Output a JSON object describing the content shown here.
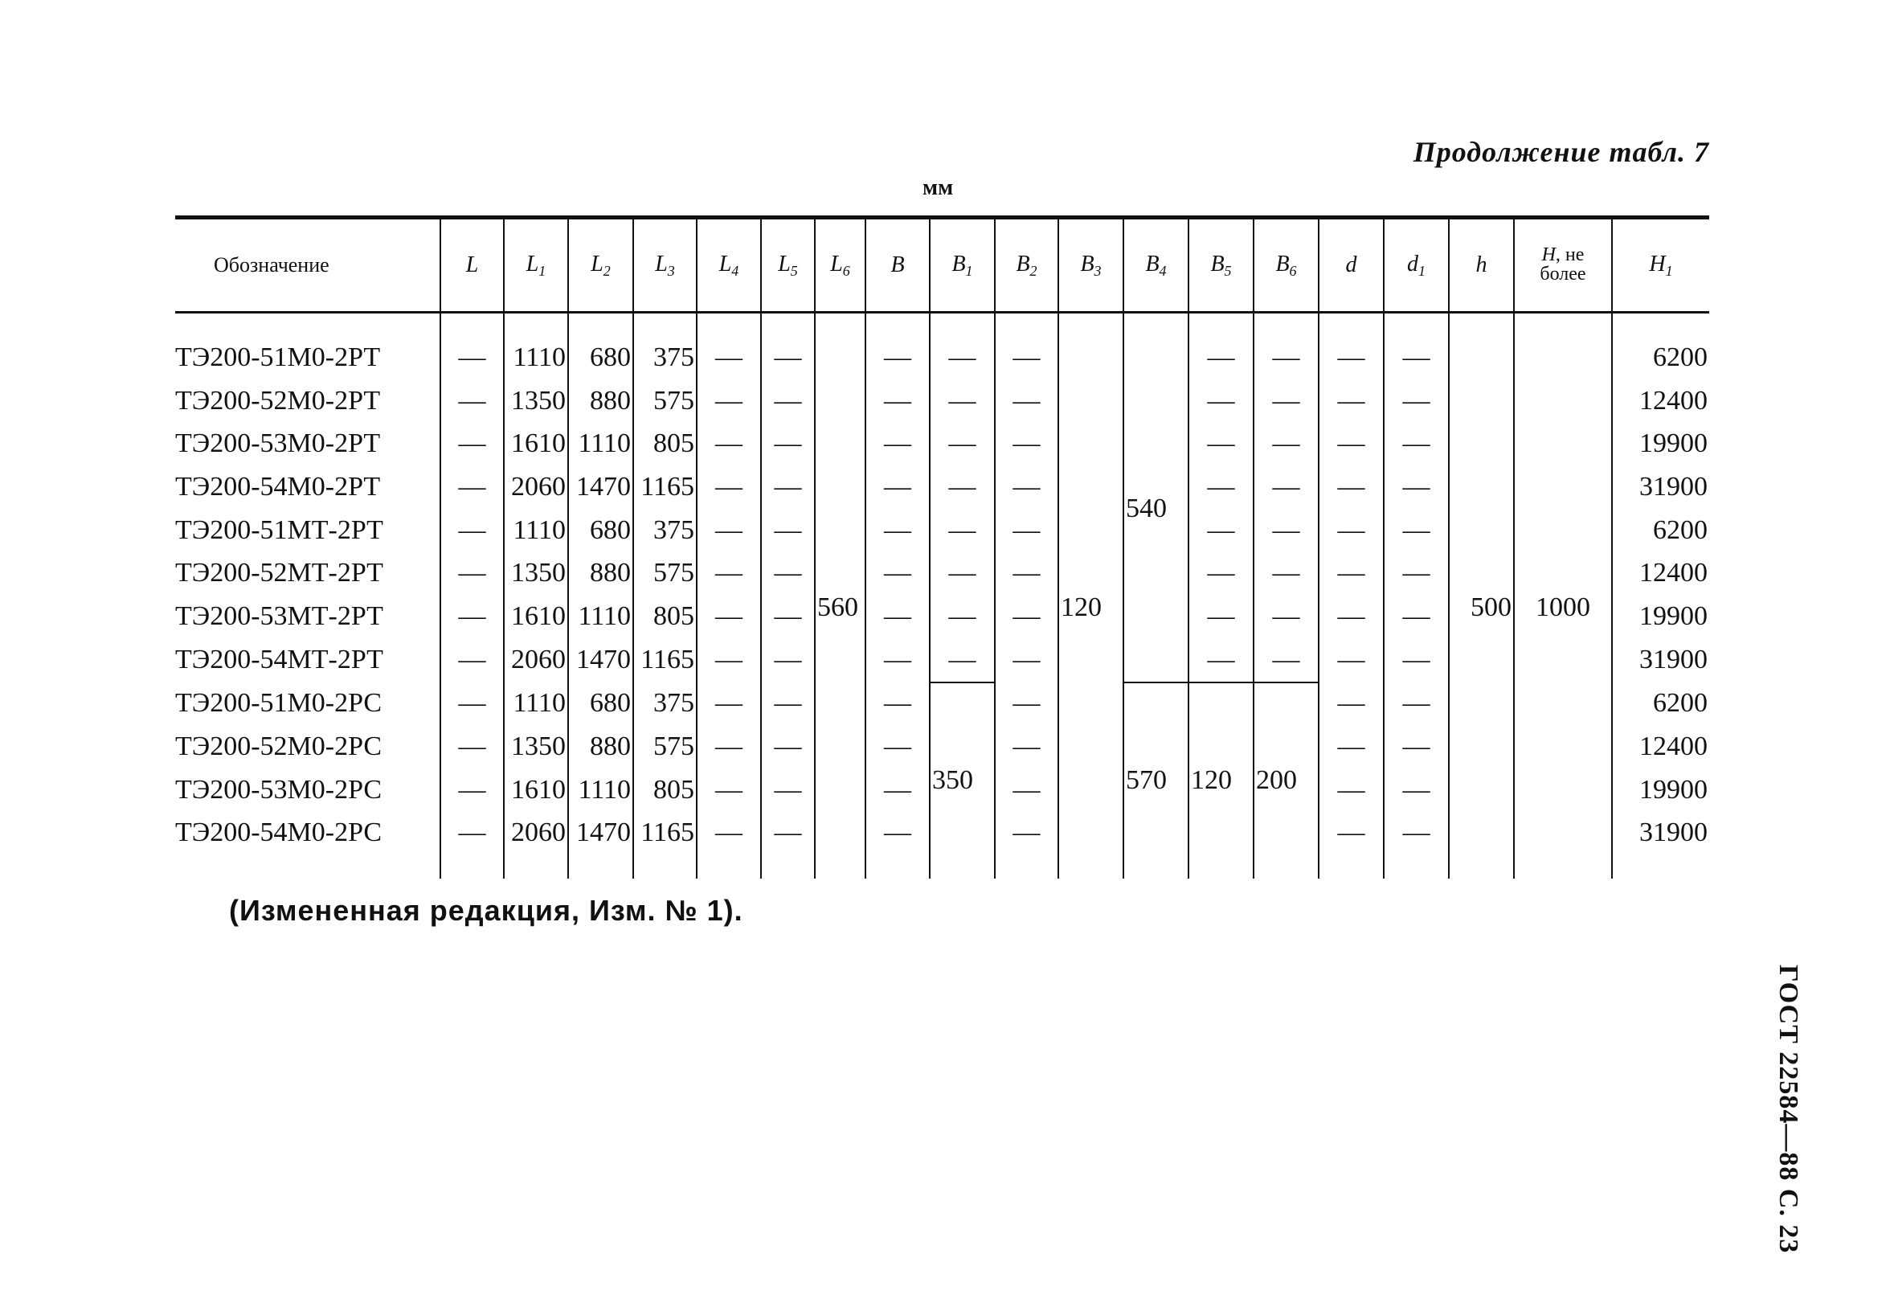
{
  "header": {
    "continuation": "Продолжение табл. 7",
    "units": "мм"
  },
  "columns": [
    {
      "label": "Обозначение",
      "sub": ""
    },
    {
      "label": "L",
      "sub": ""
    },
    {
      "label": "L",
      "sub": "1"
    },
    {
      "label": "L",
      "sub": "2"
    },
    {
      "label": "L",
      "sub": "3"
    },
    {
      "label": "L",
      "sub": "4"
    },
    {
      "label": "L",
      "sub": "5"
    },
    {
      "label": "L",
      "sub": "6"
    },
    {
      "label": "B",
      "sub": ""
    },
    {
      "label": "B",
      "sub": "1"
    },
    {
      "label": "B",
      "sub": "2"
    },
    {
      "label": "B",
      "sub": "3"
    },
    {
      "label": "B",
      "sub": "4"
    },
    {
      "label": "B",
      "sub": "5"
    },
    {
      "label": "B",
      "sub": "6"
    },
    {
      "label": "d",
      "sub": ""
    },
    {
      "label": "d",
      "sub": "1"
    },
    {
      "label": "h",
      "sub": ""
    },
    {
      "label": "H, не более",
      "sub": ""
    },
    {
      "label": "H",
      "sub": "1"
    }
  ],
  "merged": {
    "L6": "560",
    "B3": "120",
    "h": "500",
    "H": "1000",
    "B1_group2": "350",
    "B4_group1": "540",
    "B4_group2": "570",
    "B5_group2": "120",
    "B6_group2": "200"
  },
  "rows": [
    {
      "name": "ТЭ200-51М0-2РТ",
      "L": "—",
      "L1": "1110",
      "L2": "680",
      "L3": "375",
      "L4": "—",
      "L5": "—",
      "B": "—",
      "B1": "—",
      "B2": "—",
      "B5": "—",
      "B6": "—",
      "d": "—",
      "d1": "—",
      "H1": "6200"
    },
    {
      "name": "ТЭ200-52М0-2РТ",
      "L": "—",
      "L1": "1350",
      "L2": "880",
      "L3": "575",
      "L4": "—",
      "L5": "—",
      "B": "—",
      "B1": "—",
      "B2": "—",
      "B5": "—",
      "B6": "—",
      "d": "—",
      "d1": "—",
      "H1": "12400"
    },
    {
      "name": "ТЭ200-53М0-2РТ",
      "L": "—",
      "L1": "1610",
      "L2": "1110",
      "L3": "805",
      "L4": "—",
      "L5": "—",
      "B": "—",
      "B1": "—",
      "B2": "—",
      "B5": "—",
      "B6": "—",
      "d": "—",
      "d1": "—",
      "H1": "19900"
    },
    {
      "name": "ТЭ200-54М0-2РТ",
      "L": "—",
      "L1": "2060",
      "L2": "1470",
      "L3": "1165",
      "L4": "—",
      "L5": "—",
      "B": "—",
      "B1": "—",
      "B2": "—",
      "B5": "—",
      "B6": "—",
      "d": "—",
      "d1": "—",
      "H1": "31900"
    },
    {
      "name": "ТЭ200-51МТ-2РТ",
      "L": "—",
      "L1": "1110",
      "L2": "680",
      "L3": "375",
      "L4": "—",
      "L5": "—",
      "B": "—",
      "B1": "—",
      "B2": "—",
      "B5": "—",
      "B6": "—",
      "d": "—",
      "d1": "—",
      "H1": "6200"
    },
    {
      "name": "ТЭ200-52МТ-2РТ",
      "L": "—",
      "L1": "1350",
      "L2": "880",
      "L3": "575",
      "L4": "—",
      "L5": "—",
      "B": "—",
      "B1": "—",
      "B2": "—",
      "B5": "—",
      "B6": "—",
      "d": "—",
      "d1": "—",
      "H1": "12400"
    },
    {
      "name": "ТЭ200-53МТ-2РТ",
      "L": "—",
      "L1": "1610",
      "L2": "1110",
      "L3": "805",
      "L4": "—",
      "L5": "—",
      "B": "—",
      "B1": "—",
      "B2": "—",
      "B5": "—",
      "B6": "—",
      "d": "—",
      "d1": "—",
      "H1": "19900"
    },
    {
      "name": "ТЭ200-54МТ-2РТ",
      "L": "—",
      "L1": "2060",
      "L2": "1470",
      "L3": "1165",
      "L4": "—",
      "L5": "—",
      "B": "—",
      "B1": "—",
      "B2": "—",
      "B5": "—",
      "B6": "—",
      "d": "—",
      "d1": "—",
      "H1": "31900"
    },
    {
      "name": "ТЭ200-51М0-2РС",
      "L": "—",
      "L1": "1110",
      "L2": "680",
      "L3": "375",
      "L4": "—",
      "L5": "—",
      "B": "—",
      "B2": "—",
      "d": "—",
      "d1": "—",
      "H1": "6200"
    },
    {
      "name": "ТЭ200-52М0-2РС",
      "L": "—",
      "L1": "1350",
      "L2": "880",
      "L3": "575",
      "L4": "—",
      "L5": "—",
      "B": "—",
      "B2": "—",
      "d": "—",
      "d1": "—",
      "H1": "12400"
    },
    {
      "name": "ТЭ200-53М0-2РС",
      "L": "—",
      "L1": "1610",
      "L2": "1110",
      "L3": "805",
      "L4": "—",
      "L5": "—",
      "B": "—",
      "B2": "—",
      "d": "—",
      "d1": "—",
      "H1": "19900"
    },
    {
      "name": "ТЭ200-54М0-2РС",
      "L": "—",
      "L1": "2060",
      "L2": "1470",
      "L3": "1165",
      "L4": "—",
      "L5": "—",
      "B": "—",
      "B2": "—",
      "d": "—",
      "d1": "—",
      "H1": "31900"
    }
  ],
  "footnote": "(Измененная редакция, Изм. № 1).",
  "side_label": "ГОСТ 22584—88 С. 23"
}
